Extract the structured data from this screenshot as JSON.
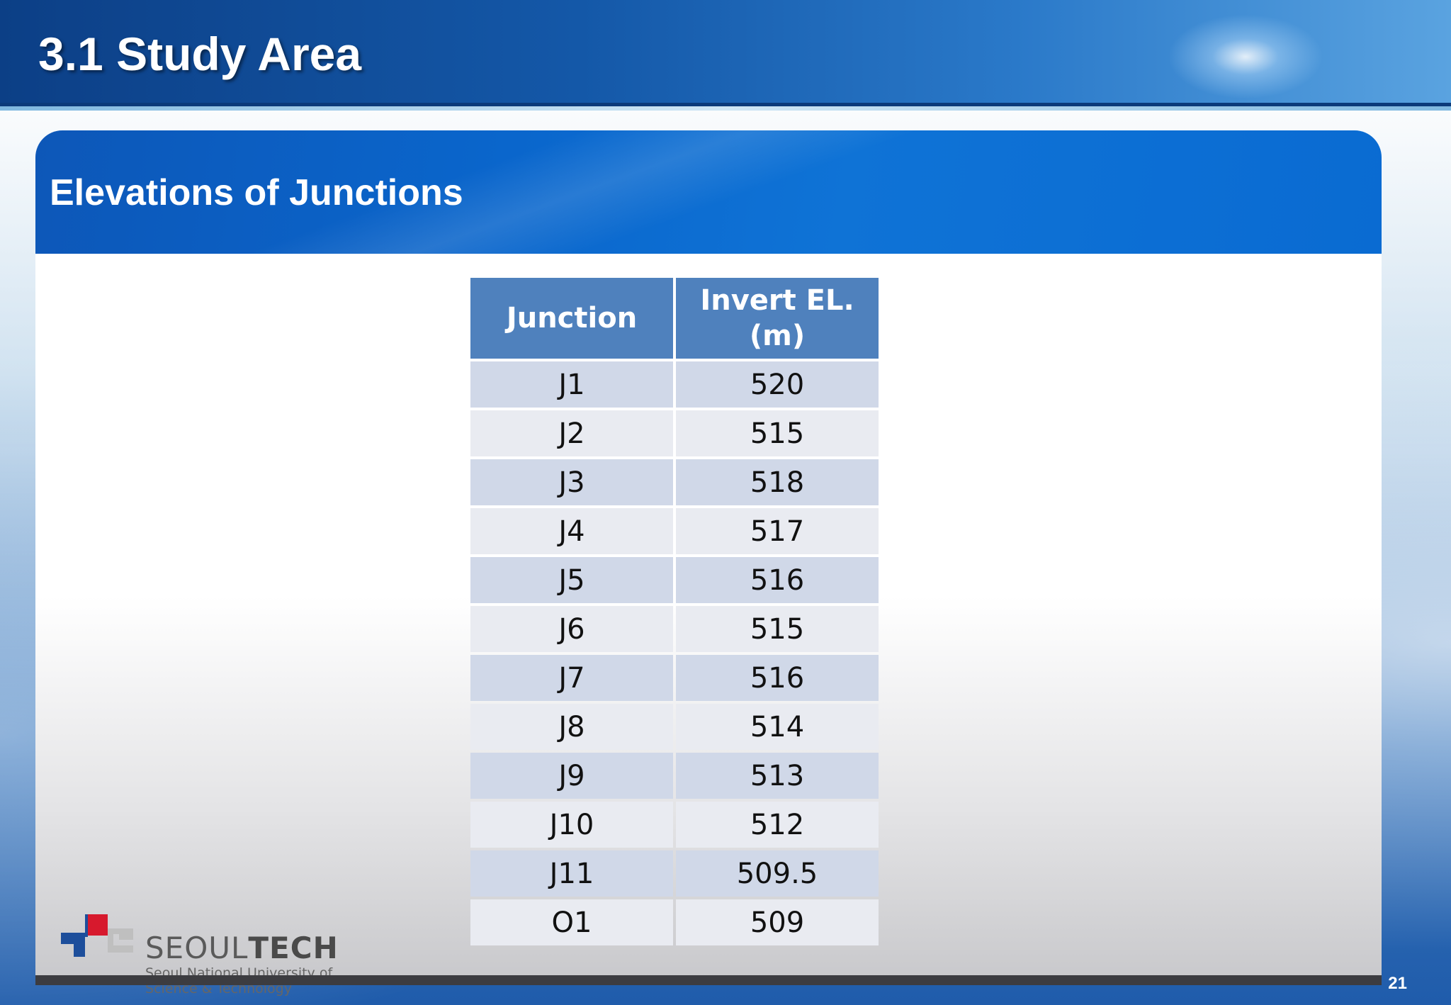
{
  "slide": {
    "title": "3.1 Study Area",
    "subtitle": "Elevations of Junctions",
    "page_number": "21"
  },
  "table": {
    "headers": [
      "Junction",
      "Invert EL.\n(m)"
    ],
    "rows": [
      {
        "junction": "J1",
        "invert_el": "520"
      },
      {
        "junction": "J2",
        "invert_el": "515"
      },
      {
        "junction": "J3",
        "invert_el": "518"
      },
      {
        "junction": "J4",
        "invert_el": "517"
      },
      {
        "junction": "J5",
        "invert_el": "516"
      },
      {
        "junction": "J6",
        "invert_el": "515"
      },
      {
        "junction": "J7",
        "invert_el": "516"
      },
      {
        "junction": "J8",
        "invert_el": "514"
      },
      {
        "junction": "J9",
        "invert_el": "513"
      },
      {
        "junction": "J10",
        "invert_el": "512"
      },
      {
        "junction": "J11",
        "invert_el": "509.5"
      },
      {
        "junction": "O1",
        "invert_el": "509"
      }
    ]
  },
  "logo": {
    "name_light": "SEOUL",
    "name_bold": "TECH",
    "subtitle_line1": "Seoul National University of",
    "subtitle_line2": "Science & Technology"
  },
  "colors": {
    "header_dark": "#0c3f86",
    "panel_header": "#0a66cc",
    "table_header": "#4f81bd",
    "row_odd": "#d0d8e8",
    "row_even": "#e9ebf1",
    "logo_red": "#d7192d",
    "logo_blue": "#1d4e9b"
  }
}
